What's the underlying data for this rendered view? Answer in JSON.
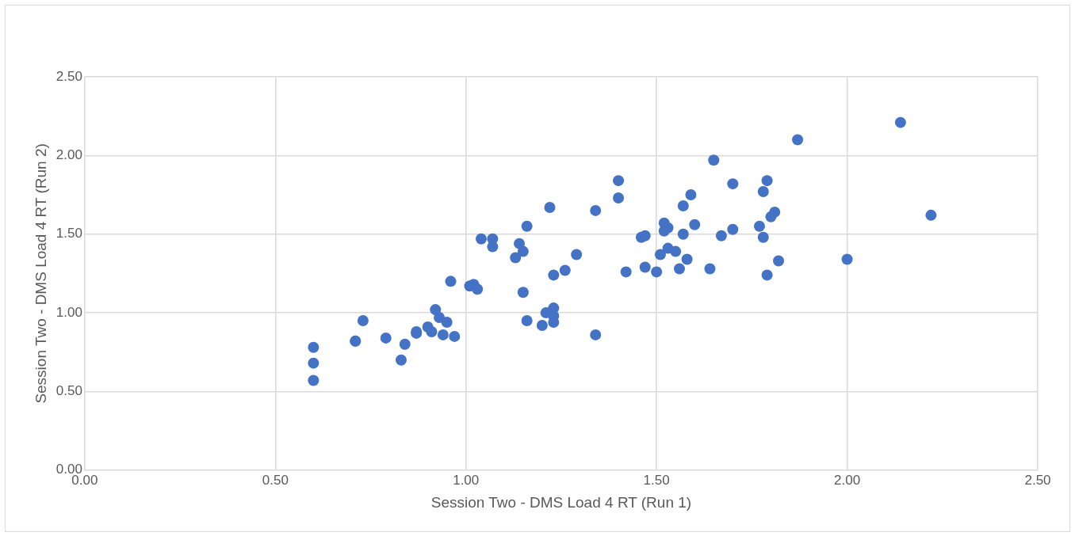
{
  "chart_data": {
    "type": "scatter",
    "xlabel": "Session Two - DMS Load 4 RT (Run 1)",
    "ylabel": "Session Two - DMS Load 4 RT (Run 2)",
    "xlim": [
      0,
      2.5
    ],
    "ylim": [
      0,
      2.5
    ],
    "xticks": [
      {
        "value": 0,
        "label": "0.00"
      },
      {
        "value": 0.5,
        "label": "0.50"
      },
      {
        "value": 1,
        "label": "1.00"
      },
      {
        "value": 1.5,
        "label": "1.50"
      },
      {
        "value": 2,
        "label": "2.00"
      },
      {
        "value": 2.5,
        "label": "2.50"
      }
    ],
    "yticks": [
      {
        "value": 0,
        "label": "0.00"
      },
      {
        "value": 0.5,
        "label": "0.50"
      },
      {
        "value": 1,
        "label": "1.00"
      },
      {
        "value": 1.5,
        "label": "1.50"
      },
      {
        "value": 2,
        "label": "2.00"
      },
      {
        "value": 2.5,
        "label": "2.50"
      }
    ],
    "grid": true,
    "legend": false,
    "marker": "circle",
    "series": [
      {
        "color": "#4472c4",
        "x": [
          0.6,
          0.6,
          0.6,
          0.71,
          0.71,
          0.73,
          0.79,
          0.83,
          0.84,
          0.87,
          0.87,
          0.9,
          0.91,
          0.92,
          0.93,
          0.94,
          0.95,
          0.97,
          0.96,
          1.01,
          1.02,
          1.03,
          1.04,
          1.07,
          1.07,
          1.13,
          1.14,
          1.15,
          1.15,
          1.16,
          1.16,
          1.2,
          1.21,
          1.22,
          1.23,
          1.23,
          1.23,
          1.23,
          1.26,
          1.29,
          1.34,
          1.34,
          1.4,
          1.4,
          1.42,
          1.46,
          1.47,
          1.47,
          1.5,
          1.51,
          1.52,
          1.52,
          1.53,
          1.53,
          1.55,
          1.56,
          1.57,
          1.57,
          1.58,
          1.59,
          1.6,
          1.64,
          1.65,
          1.67,
          1.7,
          1.7,
          1.77,
          1.78,
          1.78,
          1.79,
          1.79,
          1.8,
          1.81,
          1.82,
          1.87,
          2.0,
          2.14,
          2.22
        ],
        "values": [
          0.78,
          0.68,
          0.57,
          0.82,
          0.82,
          0.95,
          0.84,
          0.7,
          0.8,
          0.87,
          0.88,
          0.91,
          0.88,
          1.02,
          0.97,
          0.86,
          0.94,
          0.85,
          1.2,
          1.17,
          1.18,
          1.15,
          1.47,
          1.47,
          1.42,
          1.35,
          1.44,
          1.39,
          1.13,
          1.55,
          0.95,
          0.92,
          1.0,
          1.67,
          0.94,
          1.03,
          0.98,
          1.24,
          1.27,
          1.37,
          1.65,
          0.86,
          1.73,
          1.84,
          1.26,
          1.48,
          1.49,
          1.29,
          1.26,
          1.37,
          1.57,
          1.52,
          1.54,
          1.41,
          1.39,
          1.28,
          1.5,
          1.68,
          1.34,
          1.75,
          1.56,
          1.28,
          1.97,
          1.49,
          1.82,
          1.53,
          1.55,
          1.77,
          1.48,
          1.84,
          1.24,
          1.61,
          1.64,
          1.33,
          2.1,
          1.34,
          2.21,
          1.62
        ]
      }
    ]
  }
}
